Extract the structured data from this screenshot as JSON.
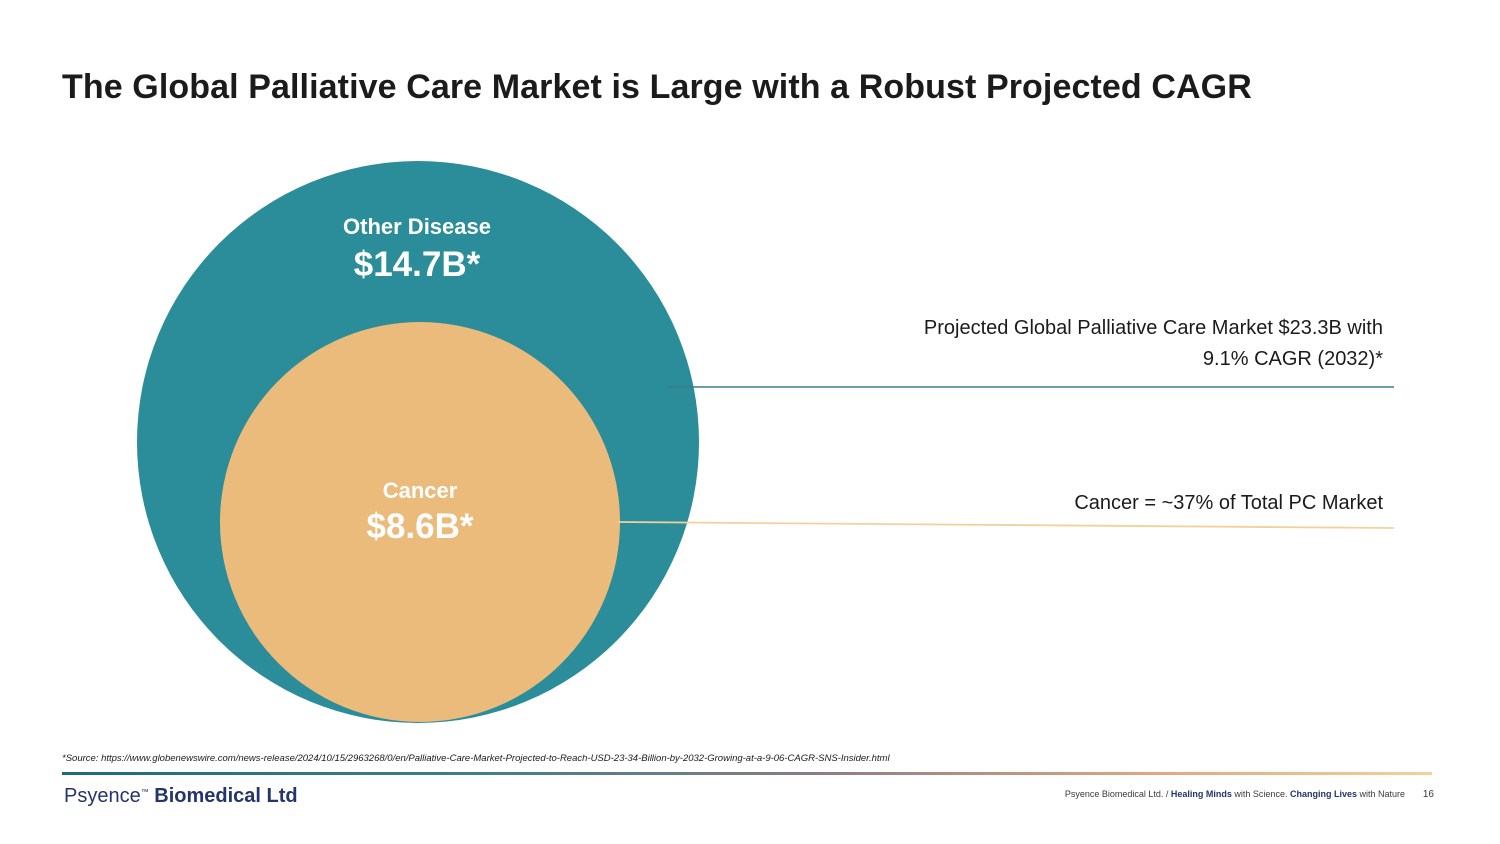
{
  "title": "The Global Palliative Care Market is Large with a Robust Projected CAGR",
  "outer_circle": {
    "label": "Other Disease",
    "value": "$14.7B*",
    "color": "#2a8d99"
  },
  "inner_circle": {
    "label": "Cancer",
    "value": "$8.6B*",
    "color": "#ebbb7b"
  },
  "callouts": {
    "market_line1": "Projected Global Palliative Care Market $23.3B with",
    "market_line2": "9.1% CAGR (2032)*",
    "cancer_share": "Cancer = ~37% of Total PC Market"
  },
  "source": "*Source: https://www.globenewswire.com/news-release/2024/10/15/2963268/0/en/Palliative-Care-Market-Projected-to-Reach-USD-23-34-Billion-by-2032-Growing-at-a-9-06-CAGR-SNS-Insider.html",
  "footer": {
    "brand_light": "Psyence",
    "brand_tm": "™",
    "brand_bold": " Biomedical Ltd",
    "tagline_prefix": "Psyence Biomedical Ltd. / ",
    "tag_healing": "Healing Minds",
    "tag_with_science": " with Science. ",
    "tag_changing": "Changing Lives",
    "tag_with_nature": " with Nature",
    "page_number": "16"
  },
  "colors": {
    "teal_line": "#3b7f88",
    "gold_line": "#f2d29a"
  }
}
